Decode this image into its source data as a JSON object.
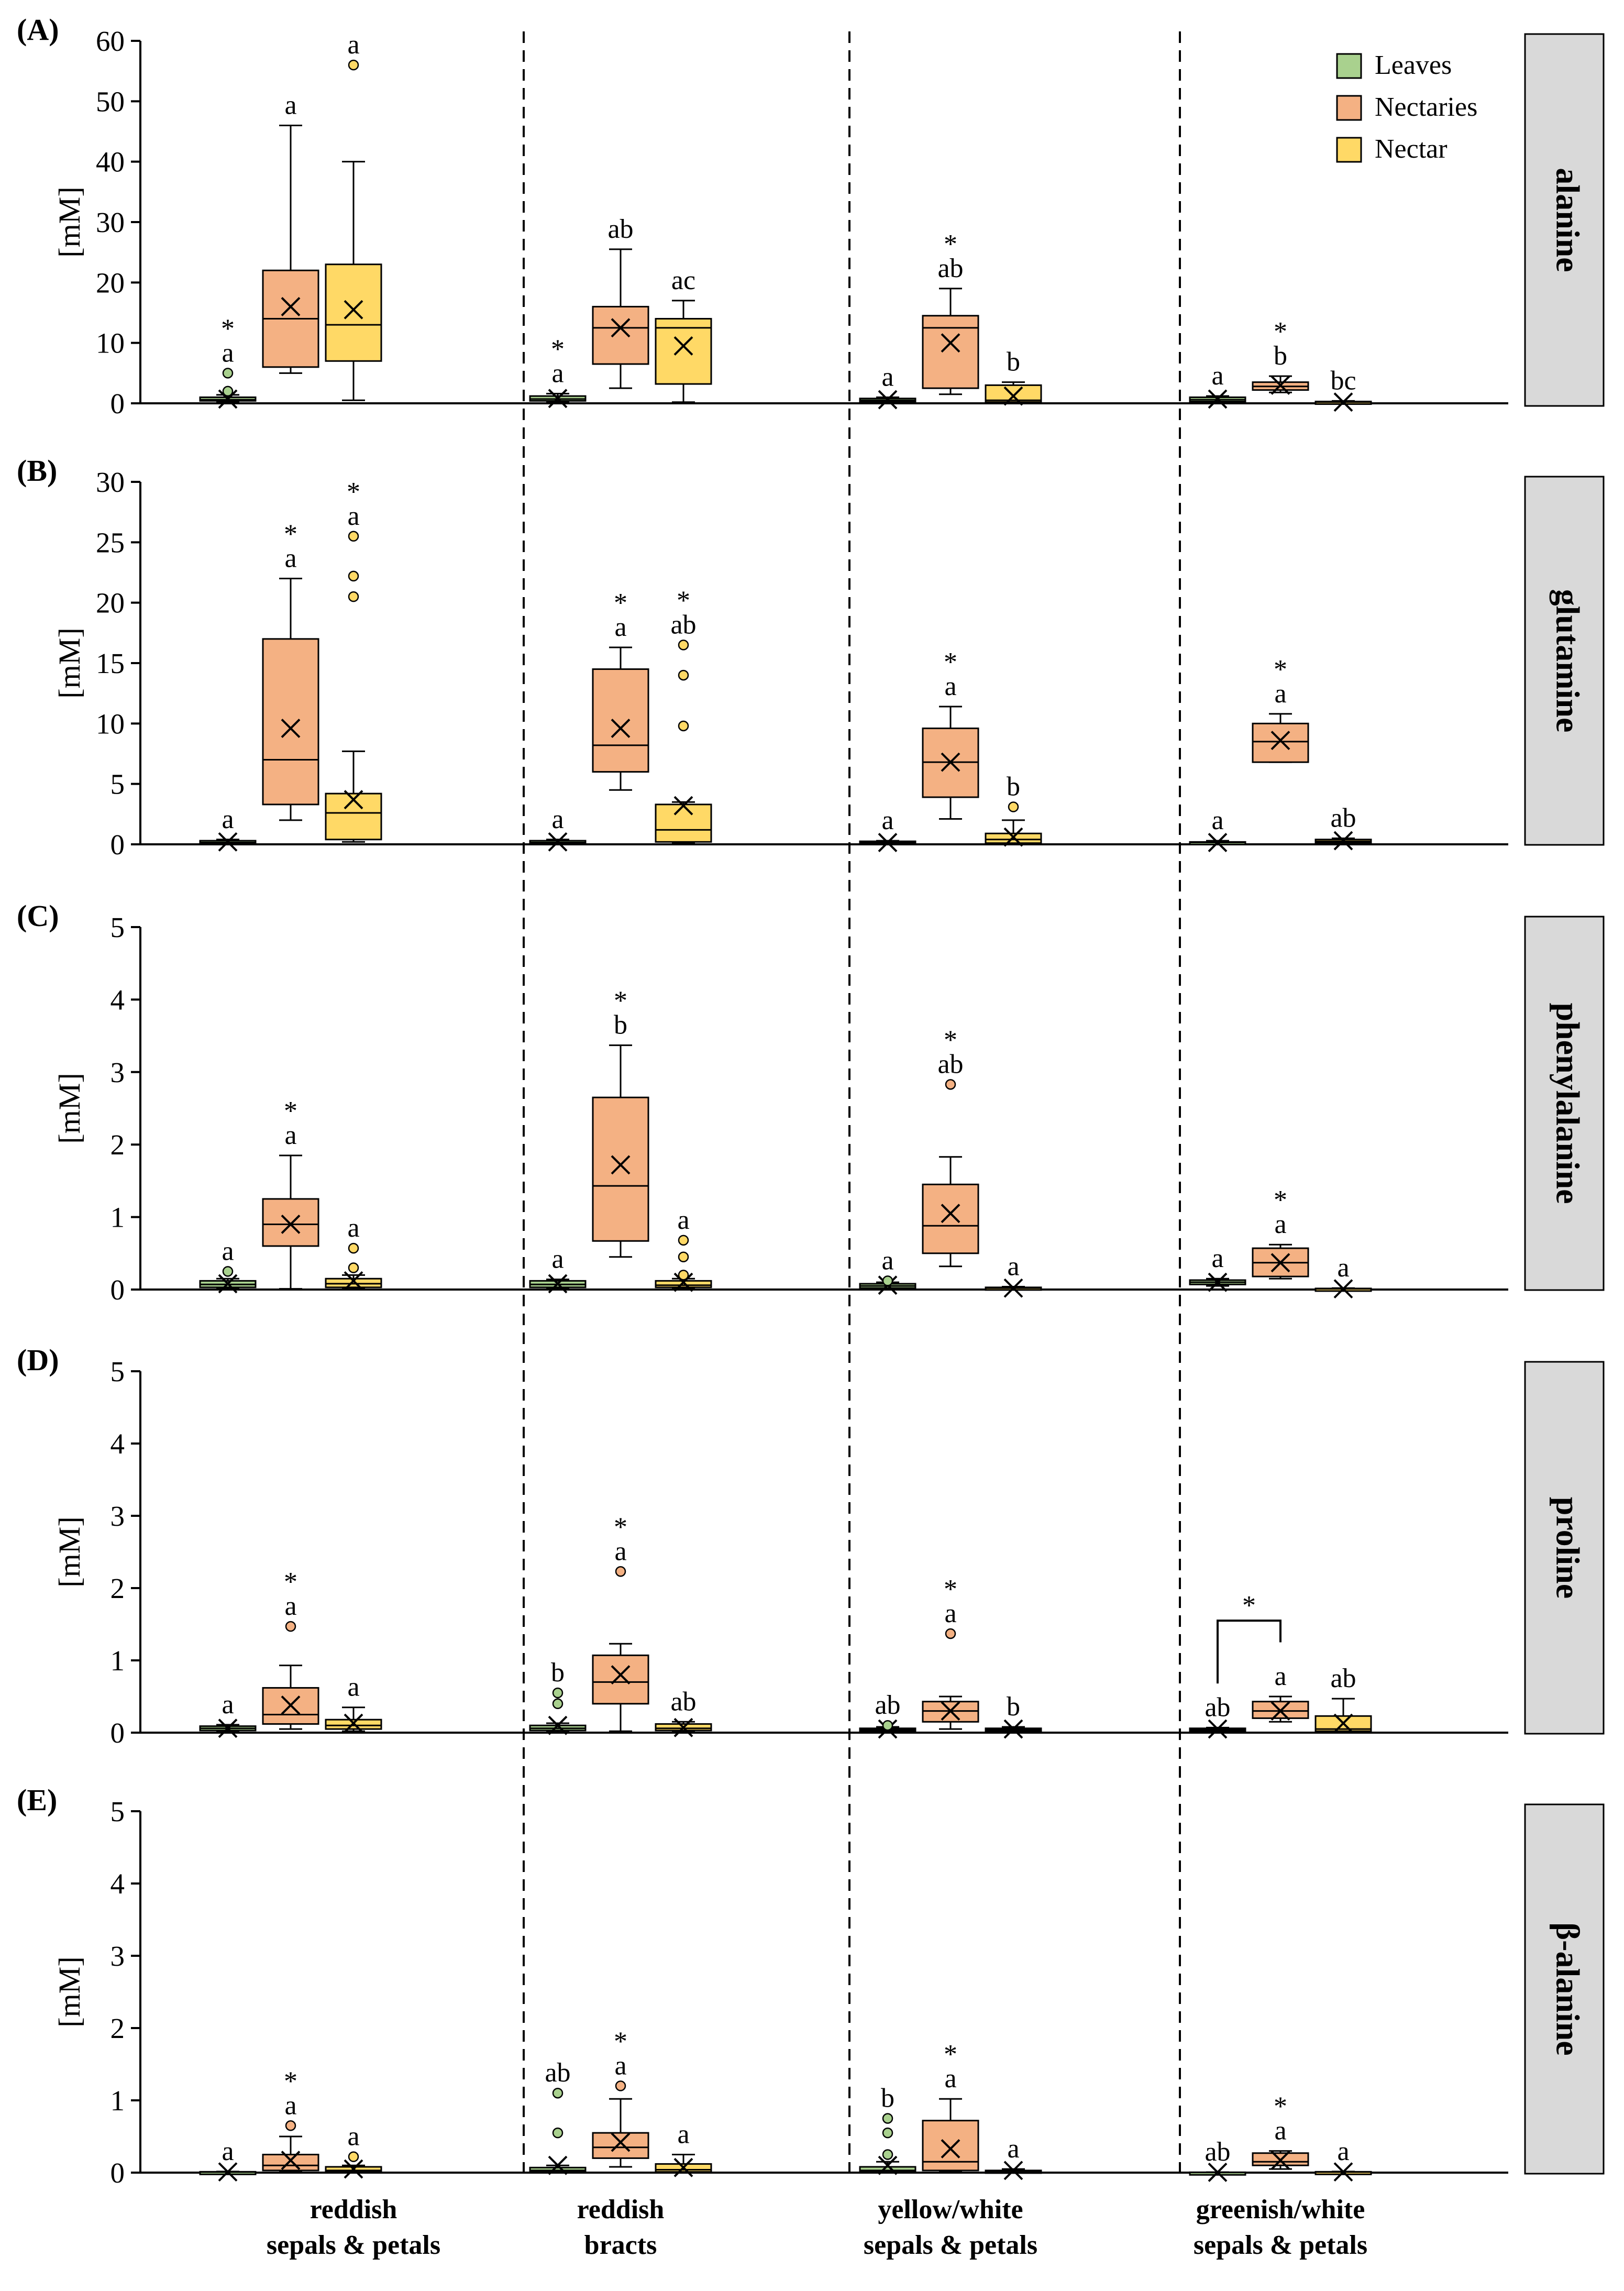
{
  "legend": [
    {
      "key": "leaves",
      "label": "Leaves",
      "color": "#a9d18e"
    },
    {
      "key": "nectaries",
      "label": "Nectaries",
      "color": "#f4b183"
    },
    {
      "key": "nectar",
      "label": "Nectar",
      "color": "#ffd966"
    }
  ],
  "groups": [
    "reddish\nsepals & petals",
    "reddish\nbracts",
    "yellow/white\nsepals & petals",
    "greenish/white\nsepals & petals"
  ],
  "ylabel": "[mM]",
  "chart_data": [
    {
      "type": "box",
      "panel": "(A)",
      "title": "alanine",
      "ylabel": "[mM]",
      "ylim": [
        0,
        60
      ],
      "yticks": [
        0,
        10,
        20,
        30,
        40,
        50,
        60
      ],
      "boxes": [
        {
          "g": 0,
          "s": 0,
          "min": 0.2,
          "q1": 0.4,
          "med": 0.6,
          "q3": 1.0,
          "max": 1.4,
          "mean": 0.7,
          "out": [
            2.0,
            5.0
          ],
          "lab": [
            "*",
            "a"
          ]
        },
        {
          "g": 0,
          "s": 1,
          "min": 5,
          "q1": 6,
          "med": 14,
          "q3": 22,
          "max": 46,
          "mean": 16,
          "out": [],
          "lab": [
            "a"
          ]
        },
        {
          "g": 0,
          "s": 2,
          "min": 0.5,
          "q1": 7,
          "med": 13,
          "q3": 23,
          "max": 40,
          "mean": 15.5,
          "out": [
            56
          ],
          "lab": [
            "a"
          ]
        },
        {
          "g": 1,
          "s": 0,
          "min": 0.2,
          "q1": 0.4,
          "med": 0.7,
          "q3": 1.2,
          "max": 1.6,
          "mean": 0.8,
          "out": [],
          "lab": [
            "*",
            "a"
          ]
        },
        {
          "g": 1,
          "s": 1,
          "min": 2.5,
          "q1": 6.5,
          "med": 12.5,
          "q3": 16,
          "max": 25.5,
          "mean": 12.5,
          "out": [],
          "lab": [
            "ab"
          ]
        },
        {
          "g": 1,
          "s": 2,
          "min": 0.2,
          "q1": 3.2,
          "med": 12.5,
          "q3": 14,
          "max": 17,
          "mean": 9.5,
          "out": [],
          "lab": [
            "ac"
          ]
        },
        {
          "g": 2,
          "s": 0,
          "min": 0.2,
          "q1": 0.3,
          "med": 0.5,
          "q3": 0.8,
          "max": 1.0,
          "mean": 0.6,
          "out": [],
          "lab": [
            "a"
          ]
        },
        {
          "g": 2,
          "s": 1,
          "min": 1.5,
          "q1": 2.5,
          "med": 12.5,
          "q3": 14.5,
          "max": 19,
          "mean": 10,
          "out": [],
          "lab": [
            "*",
            "ab"
          ]
        },
        {
          "g": 2,
          "s": 2,
          "min": 0.1,
          "q1": 0.2,
          "med": 0.5,
          "q3": 3,
          "max": 3.5,
          "mean": 1.2,
          "out": [],
          "lab": [
            "b"
          ]
        },
        {
          "g": 3,
          "s": 0,
          "min": 0.2,
          "q1": 0.3,
          "med": 0.6,
          "q3": 1.0,
          "max": 1.2,
          "mean": 0.7,
          "out": [],
          "lab": [
            "a"
          ]
        },
        {
          "g": 3,
          "s": 1,
          "min": 1.8,
          "q1": 2.2,
          "med": 2.8,
          "q3": 3.5,
          "max": 4.5,
          "mean": 3,
          "out": [],
          "lab": [
            "*",
            "b"
          ]
        },
        {
          "g": 3,
          "s": 2,
          "min": 0.05,
          "q1": 0.1,
          "med": 0.2,
          "q3": 0.3,
          "max": 0.4,
          "mean": 0.2,
          "out": [],
          "lab": [
            "bc"
          ]
        }
      ]
    },
    {
      "type": "box",
      "panel": "(B)",
      "title": "glutamine",
      "ylabel": "[mM]",
      "ylim": [
        0,
        30
      ],
      "yticks": [
        0,
        5,
        10,
        15,
        20,
        25,
        30
      ],
      "boxes": [
        {
          "g": 0,
          "s": 0,
          "min": 0.05,
          "q1": 0.1,
          "med": 0.15,
          "q3": 0.3,
          "max": 0.4,
          "mean": 0.2,
          "out": [],
          "lab": [
            "a"
          ]
        },
        {
          "g": 0,
          "s": 1,
          "min": 2,
          "q1": 3.3,
          "med": 7,
          "q3": 17,
          "max": 22,
          "mean": 9.6,
          "out": [],
          "lab": [
            "*",
            "a"
          ]
        },
        {
          "g": 0,
          "s": 2,
          "min": 0.2,
          "q1": 0.4,
          "med": 2.6,
          "q3": 4.2,
          "max": 7.7,
          "mean": 3.7,
          "out": [
            20.5,
            22.2,
            25.5
          ],
          "lab": [
            "*",
            "a"
          ]
        },
        {
          "g": 1,
          "s": 0,
          "min": 0.05,
          "q1": 0.1,
          "med": 0.15,
          "q3": 0.3,
          "max": 0.4,
          "mean": 0.2,
          "out": [],
          "lab": [
            "a"
          ]
        },
        {
          "g": 1,
          "s": 1,
          "min": 4.5,
          "q1": 6,
          "med": 8.2,
          "q3": 14.5,
          "max": 16.3,
          "mean": 9.6,
          "out": [],
          "lab": [
            "*",
            "a"
          ]
        },
        {
          "g": 1,
          "s": 2,
          "min": 0.1,
          "q1": 0.2,
          "med": 1.2,
          "q3": 3.3,
          "max": 3.5,
          "mean": 3.2,
          "out": [
            9.8,
            14,
            16.5
          ],
          "lab": [
            "*",
            "ab"
          ]
        },
        {
          "g": 2,
          "s": 0,
          "min": 0.05,
          "q1": 0.1,
          "med": 0.15,
          "q3": 0.25,
          "max": 0.3,
          "mean": 0.15,
          "out": [],
          "lab": [
            "a"
          ]
        },
        {
          "g": 2,
          "s": 1,
          "min": 2.1,
          "q1": 3.9,
          "med": 6.8,
          "q3": 9.6,
          "max": 11.4,
          "mean": 6.8,
          "out": [],
          "lab": [
            "*",
            "a"
          ]
        },
        {
          "g": 2,
          "s": 2,
          "min": 0.05,
          "q1": 0.1,
          "med": 0.4,
          "q3": 0.9,
          "max": 2.0,
          "mean": 0.6,
          "out": [
            3.1
          ],
          "lab": [
            "b"
          ]
        },
        {
          "g": 3,
          "s": 0,
          "min": 0.05,
          "q1": 0.1,
          "med": 0.15,
          "q3": 0.2,
          "max": 0.3,
          "mean": 0.15,
          "out": [],
          "lab": [
            "a"
          ]
        },
        {
          "g": 3,
          "s": 1,
          "min": 6.8,
          "q1": 6.8,
          "med": 8.5,
          "q3": 10,
          "max": 10.8,
          "mean": 8.6,
          "out": [],
          "lab": [
            "*",
            "a"
          ]
        },
        {
          "g": 3,
          "s": 2,
          "min": 0.1,
          "q1": 0.15,
          "med": 0.25,
          "q3": 0.4,
          "max": 0.5,
          "mean": 0.3,
          "out": [],
          "lab": [
            "ab"
          ]
        }
      ]
    },
    {
      "type": "box",
      "panel": "(C)",
      "title": "phenylalanine",
      "ylabel": "[mM]",
      "ylim": [
        0,
        5
      ],
      "yticks": [
        0,
        1,
        2,
        3,
        4,
        5
      ],
      "boxes": [
        {
          "g": 0,
          "s": 0,
          "min": 0.01,
          "q1": 0.03,
          "med": 0.07,
          "q3": 0.12,
          "max": 0.15,
          "mean": 0.08,
          "out": [
            0.25
          ],
          "lab": [
            "a"
          ]
        },
        {
          "g": 0,
          "s": 1,
          "min": 0.01,
          "q1": 0.6,
          "med": 0.9,
          "q3": 1.25,
          "max": 1.85,
          "mean": 0.9,
          "out": [],
          "lab": [
            "*",
            "a"
          ]
        },
        {
          "g": 0,
          "s": 2,
          "min": 0.01,
          "q1": 0.03,
          "med": 0.08,
          "q3": 0.15,
          "max": 0.2,
          "mean": 0.12,
          "out": [
            0.3,
            0.57
          ],
          "lab": [
            "a"
          ]
        },
        {
          "g": 1,
          "s": 0,
          "min": 0.01,
          "q1": 0.03,
          "med": 0.07,
          "q3": 0.12,
          "max": 0.14,
          "mean": 0.08,
          "out": [],
          "lab": [
            "a"
          ]
        },
        {
          "g": 1,
          "s": 1,
          "min": 0.45,
          "q1": 0.67,
          "med": 1.43,
          "q3": 2.65,
          "max": 3.37,
          "mean": 1.72,
          "out": [],
          "lab": [
            "*",
            "b"
          ]
        },
        {
          "g": 1,
          "s": 2,
          "min": 0.01,
          "q1": 0.03,
          "med": 0.06,
          "q3": 0.12,
          "max": 0.15,
          "mean": 0.1,
          "out": [
            0.2,
            0.45,
            0.68
          ],
          "lab": [
            "a"
          ]
        },
        {
          "g": 2,
          "s": 0,
          "min": 0.01,
          "q1": 0.02,
          "med": 0.05,
          "q3": 0.08,
          "max": 0.1,
          "mean": 0.06,
          "out": [
            0.12
          ],
          "lab": [
            "a"
          ]
        },
        {
          "g": 2,
          "s": 1,
          "min": 0.32,
          "q1": 0.5,
          "med": 0.88,
          "q3": 1.45,
          "max": 1.83,
          "mean": 1.05,
          "out": [
            2.83
          ],
          "lab": [
            "*",
            "ab"
          ]
        },
        {
          "g": 2,
          "s": 2,
          "min": 0.005,
          "q1": 0.01,
          "med": 0.02,
          "q3": 0.03,
          "max": 0.04,
          "mean": 0.02,
          "out": [],
          "lab": [
            "a"
          ]
        },
        {
          "g": 3,
          "s": 0,
          "min": 0.05,
          "q1": 0.07,
          "med": 0.1,
          "q3": 0.13,
          "max": 0.15,
          "mean": 0.1,
          "out": [],
          "lab": [
            "a"
          ]
        },
        {
          "g": 3,
          "s": 1,
          "min": 0.15,
          "q1": 0.18,
          "med": 0.37,
          "q3": 0.57,
          "max": 0.62,
          "mean": 0.37,
          "out": [],
          "lab": [
            "*",
            "a"
          ]
        },
        {
          "g": 3,
          "s": 2,
          "min": 0.002,
          "q1": 0.005,
          "med": 0.01,
          "q3": 0.015,
          "max": 0.02,
          "mean": 0.01,
          "out": [],
          "lab": [
            "a"
          ]
        }
      ]
    },
    {
      "type": "box",
      "panel": "(D)",
      "title": "proline",
      "ylabel": "[mM]",
      "ylim": [
        0,
        5
      ],
      "yticks": [
        0,
        1,
        2,
        3,
        4,
        5
      ],
      "bracket": {
        "from": {
          "g": 3,
          "s": 0
        },
        "to": {
          "g": 3,
          "s": 1
        },
        "label": "*",
        "y": 1.55
      },
      "boxes": [
        {
          "g": 0,
          "s": 0,
          "min": 0.01,
          "q1": 0.03,
          "med": 0.06,
          "q3": 0.09,
          "max": 0.11,
          "mean": 0.06,
          "out": [],
          "lab": [
            "a"
          ]
        },
        {
          "g": 0,
          "s": 1,
          "min": 0.05,
          "q1": 0.12,
          "med": 0.25,
          "q3": 0.62,
          "max": 0.93,
          "mean": 0.38,
          "out": [
            1.47
          ],
          "lab": [
            "*",
            "a"
          ]
        },
        {
          "g": 0,
          "s": 2,
          "min": 0.02,
          "q1": 0.05,
          "med": 0.1,
          "q3": 0.18,
          "max": 0.35,
          "mean": 0.13,
          "out": [],
          "lab": [
            "a"
          ]
        },
        {
          "g": 1,
          "s": 0,
          "min": 0.01,
          "q1": 0.03,
          "med": 0.06,
          "q3": 0.1,
          "max": 0.13,
          "mean": 0.1,
          "out": [
            0.4,
            0.55
          ],
          "lab": [
            "b"
          ]
        },
        {
          "g": 1,
          "s": 1,
          "min": 0.02,
          "q1": 0.4,
          "med": 0.7,
          "q3": 1.07,
          "max": 1.23,
          "mean": 0.8,
          "out": [
            2.23
          ],
          "lab": [
            "*",
            "a"
          ]
        },
        {
          "g": 1,
          "s": 2,
          "min": 0.01,
          "q1": 0.03,
          "med": 0.06,
          "q3": 0.12,
          "max": 0.15,
          "mean": 0.07,
          "out": [],
          "lab": [
            "ab"
          ]
        },
        {
          "g": 2,
          "s": 0,
          "min": 0.01,
          "q1": 0.02,
          "med": 0.04,
          "q3": 0.06,
          "max": 0.08,
          "mean": 0.05,
          "out": [
            0.1
          ],
          "lab": [
            "ab"
          ]
        },
        {
          "g": 2,
          "s": 1,
          "min": 0.05,
          "q1": 0.15,
          "med": 0.3,
          "q3": 0.43,
          "max": 0.5,
          "mean": 0.3,
          "out": [
            1.37
          ],
          "lab": [
            "*",
            "a"
          ]
        },
        {
          "g": 2,
          "s": 2,
          "min": 0.01,
          "q1": 0.02,
          "med": 0.04,
          "q3": 0.06,
          "max": 0.08,
          "mean": 0.05,
          "out": [],
          "lab": [
            "b"
          ]
        },
        {
          "g": 3,
          "s": 0,
          "min": 0.01,
          "q1": 0.02,
          "med": 0.04,
          "q3": 0.06,
          "max": 0.07,
          "mean": 0.05,
          "out": [],
          "lab": [
            "ab"
          ]
        },
        {
          "g": 3,
          "s": 1,
          "min": 0.15,
          "q1": 0.2,
          "med": 0.3,
          "q3": 0.43,
          "max": 0.5,
          "mean": 0.3,
          "out": [],
          "lab": [
            "a"
          ]
        },
        {
          "g": 3,
          "s": 2,
          "min": 0.01,
          "q1": 0.02,
          "med": 0.05,
          "q3": 0.23,
          "max": 0.47,
          "mean": 0.13,
          "out": [],
          "lab": [
            "ab"
          ]
        }
      ]
    },
    {
      "type": "box",
      "panel": "(E)",
      "title": "β-alanine",
      "ylabel": "[mM]",
      "ylim": [
        0,
        5
      ],
      "yticks": [
        0,
        1,
        2,
        3,
        4,
        5
      ],
      "boxes": [
        {
          "g": 0,
          "s": 0,
          "min": 0.002,
          "q1": 0.004,
          "med": 0.008,
          "q3": 0.012,
          "max": 0.015,
          "mean": 0.01,
          "out": [],
          "lab": [
            "a"
          ]
        },
        {
          "g": 0,
          "s": 1,
          "min": 0.01,
          "q1": 0.03,
          "med": 0.1,
          "q3": 0.25,
          "max": 0.5,
          "mean": 0.17,
          "out": [
            0.65
          ],
          "lab": [
            "*",
            "a"
          ]
        },
        {
          "g": 0,
          "s": 2,
          "min": 0.005,
          "q1": 0.01,
          "med": 0.03,
          "q3": 0.08,
          "max": 0.1,
          "mean": 0.05,
          "out": [
            0.22
          ],
          "lab": [
            "a"
          ]
        },
        {
          "g": 1,
          "s": 0,
          "min": 0.005,
          "q1": 0.01,
          "med": 0.03,
          "q3": 0.07,
          "max": 0.1,
          "mean": 0.1,
          "out": [
            0.55,
            1.1
          ],
          "lab": [
            "ab"
          ]
        },
        {
          "g": 1,
          "s": 1,
          "min": 0.08,
          "q1": 0.2,
          "med": 0.35,
          "q3": 0.55,
          "max": 1.02,
          "mean": 0.42,
          "out": [
            1.2
          ],
          "lab": [
            "*",
            "a"
          ]
        },
        {
          "g": 1,
          "s": 2,
          "min": 0.005,
          "q1": 0.01,
          "med": 0.04,
          "q3": 0.12,
          "max": 0.25,
          "mean": 0.07,
          "out": [],
          "lab": [
            "a"
          ]
        },
        {
          "g": 2,
          "s": 0,
          "min": 0.005,
          "q1": 0.01,
          "med": 0.03,
          "q3": 0.08,
          "max": 0.15,
          "mean": 0.1,
          "out": [
            0.25,
            0.55,
            0.75
          ],
          "lab": [
            "b"
          ]
        },
        {
          "g": 2,
          "s": 1,
          "min": 0.01,
          "q1": 0.03,
          "med": 0.15,
          "q3": 0.72,
          "max": 1.02,
          "mean": 0.33,
          "out": [],
          "lab": [
            "*",
            "a"
          ]
        },
        {
          "g": 2,
          "s": 2,
          "min": 0.002,
          "q1": 0.005,
          "med": 0.01,
          "q3": 0.03,
          "max": 0.05,
          "mean": 0.03,
          "out": [],
          "lab": [
            "a"
          ]
        },
        {
          "g": 3,
          "s": 0,
          "min": 0.001,
          "q1": 0.002,
          "med": 0.003,
          "q3": 0.005,
          "max": 0.006,
          "mean": 0.004,
          "out": [],
          "lab": [
            "ab"
          ]
        },
        {
          "g": 3,
          "s": 1,
          "min": 0.05,
          "q1": 0.1,
          "med": 0.15,
          "q3": 0.27,
          "max": 0.3,
          "mean": 0.17,
          "out": [],
          "lab": [
            "*",
            "a"
          ]
        },
        {
          "g": 3,
          "s": 2,
          "min": 0.002,
          "q1": 0.004,
          "med": 0.008,
          "q3": 0.012,
          "max": 0.015,
          "mean": 0.01,
          "out": [],
          "lab": [
            "a"
          ]
        }
      ]
    }
  ]
}
